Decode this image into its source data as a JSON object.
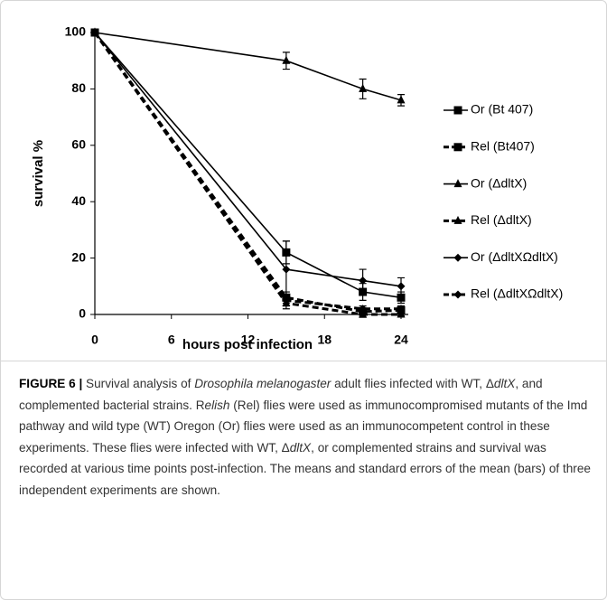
{
  "chart_data": {
    "type": "line",
    "xlabel": "hours post infection",
    "ylabel": "survival %",
    "x": [
      0,
      15,
      21,
      24
    ],
    "xlim": [
      0,
      24
    ],
    "xticks": [
      0,
      6,
      12,
      18,
      24
    ],
    "ylim": [
      0,
      100
    ],
    "yticks": [
      0,
      20,
      40,
      60,
      80,
      100
    ],
    "legend": "right",
    "series": [
      {
        "name": "Or (Bt 407)",
        "color": "#000000",
        "marker": "square",
        "dashed": false,
        "values": [
          100,
          22,
          8,
          6
        ],
        "errors": [
          null,
          4,
          3,
          2
        ]
      },
      {
        "name": "Rel (Bt407)",
        "color": "#000000",
        "marker": "square",
        "dashed": true,
        "values": [
          100,
          6,
          1,
          1.5
        ],
        "errors": [
          null,
          2,
          1,
          1
        ]
      },
      {
        "name": "Or (ΔdltX)",
        "color": "#000000",
        "marker": "triangle",
        "dashed": false,
        "values": [
          100,
          90,
          80,
          76
        ],
        "errors": [
          null,
          3,
          3.5,
          2
        ]
      },
      {
        "name": "Rel (ΔdltX)",
        "color": "#000000",
        "marker": "triangle",
        "dashed": true,
        "values": [
          100,
          4,
          0,
          0
        ],
        "errors": [
          null,
          2,
          1,
          0.5
        ]
      },
      {
        "name": "Or (ΔdltXΩdltX)",
        "color": "#000000",
        "marker": "diamond",
        "dashed": false,
        "values": [
          100,
          16,
          12,
          10
        ],
        "errors": [
          null,
          10,
          4,
          3
        ]
      },
      {
        "name": "Rel (ΔdltXΩdltX)",
        "color": "#000000",
        "marker": "diamond",
        "dashed": true,
        "values": [
          100,
          5,
          2,
          2
        ],
        "errors": [
          null,
          2,
          1,
          1
        ]
      }
    ]
  },
  "caption": [
    "FIGURE 6 |",
    " Survival analysis of ",
    "Drosophila melanogaster",
    " adult flies infected with WT, Δ",
    "dltX",
    ", and complemented bacterial strains. R",
    "elish",
    " (Rel) flies were used as immunocompromised mutants of the Imd pathway and wild type (WT) Oregon (Or) flies were used as an immunocompetent control in these experiments. These flies were infected with WT, Δ",
    "dltX",
    ", or complemented strains and survival was recorded at various time points post-infection. The means and standard errors of the mean (bars) of three independent experiments are shown."
  ]
}
